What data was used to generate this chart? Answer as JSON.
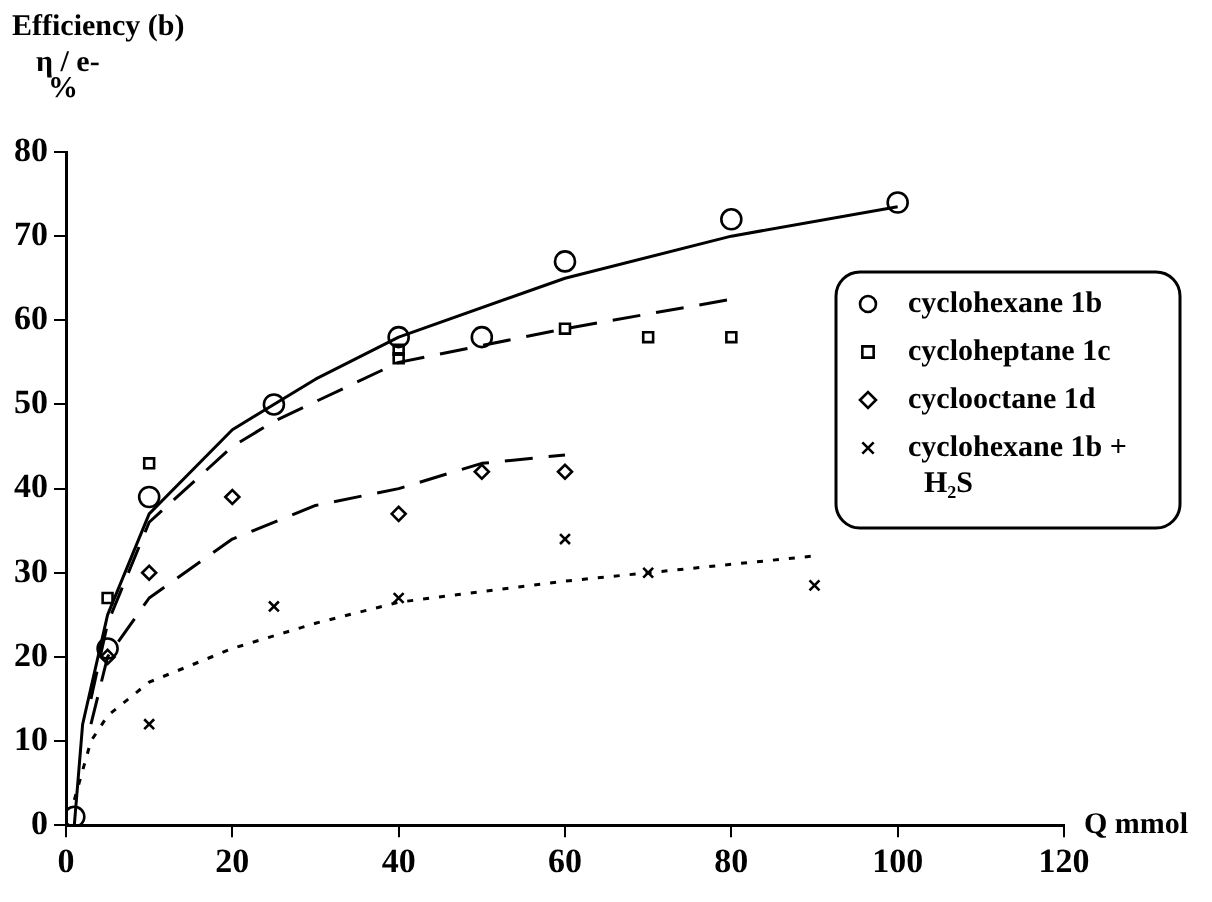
{
  "chart_data": {
    "type": "scatter",
    "title": "Efficiency (b)",
    "ylabel": "η / e-\n%",
    "xlabel": "Q mmol",
    "xlim": [
      0,
      120
    ],
    "xticks": [
      0,
      20,
      40,
      60,
      80,
      100,
      120
    ],
    "ylim": [
      0,
      80
    ],
    "yticks": [
      0,
      10,
      20,
      30,
      40,
      50,
      60,
      70,
      80
    ],
    "grid": false,
    "legend": "right",
    "series": [
      {
        "name": "cyclohexane 1b",
        "color": "#000000",
        "marker": "circle",
        "x": [
          1,
          5,
          10,
          25,
          40,
          50,
          60,
          80,
          100
        ],
        "values": [
          1,
          21,
          39,
          50,
          58,
          58,
          67,
          72,
          74
        ]
      },
      {
        "name": "cycloheptane 1c",
        "color": "#000000",
        "marker": "square",
        "x": [
          5,
          10,
          40,
          40,
          60,
          70,
          80
        ],
        "values": [
          27,
          43,
          56.5,
          55.5,
          59,
          58,
          58
        ]
      },
      {
        "name": "cyclooctane 1d",
        "color": "#000000",
        "marker": "diamond",
        "x": [
          5,
          10,
          20,
          40,
          50,
          60
        ],
        "values": [
          20,
          30,
          39,
          37,
          42,
          42
        ]
      },
      {
        "name": "cyclohexane 1b + H₂S",
        "color": "#000000",
        "marker": "cross",
        "x": [
          10,
          25,
          40,
          60,
          70,
          90
        ],
        "values": [
          12,
          26,
          27,
          34,
          30,
          28.5
        ]
      },
      {
        "type": "line",
        "color": "#000000",
        "marker": "none",
        "line_style": "solid",
        "x": [
          1,
          2,
          5,
          10,
          20,
          30,
          40,
          60,
          80,
          100
        ],
        "values": [
          0,
          12,
          25,
          37,
          47,
          53,
          58,
          65,
          70,
          73.5
        ]
      },
      {
        "type": "line",
        "color": "#000000",
        "marker": "none",
        "line_style": "dashed",
        "x": [
          3,
          5,
          10,
          20,
          25,
          40,
          60,
          80
        ],
        "values": [
          15,
          24,
          36,
          45,
          48,
          55,
          59,
          62.5
        ]
      },
      {
        "type": "line",
        "color": "#000000",
        "marker": "none",
        "line_style": "dashed",
        "x": [
          3,
          5,
          10,
          20,
          30,
          40,
          50,
          60
        ],
        "values": [
          12,
          20,
          27,
          34,
          38,
          40,
          43,
          44
        ]
      },
      {
        "type": "line",
        "color": "#000000",
        "marker": "none",
        "line_style": "dotted",
        "x": [
          1,
          3,
          5,
          10,
          20,
          30,
          40,
          60,
          70,
          90
        ],
        "values": [
          3,
          10,
          13,
          17,
          21,
          24,
          26.5,
          29,
          30,
          32
        ]
      }
    ]
  }
}
